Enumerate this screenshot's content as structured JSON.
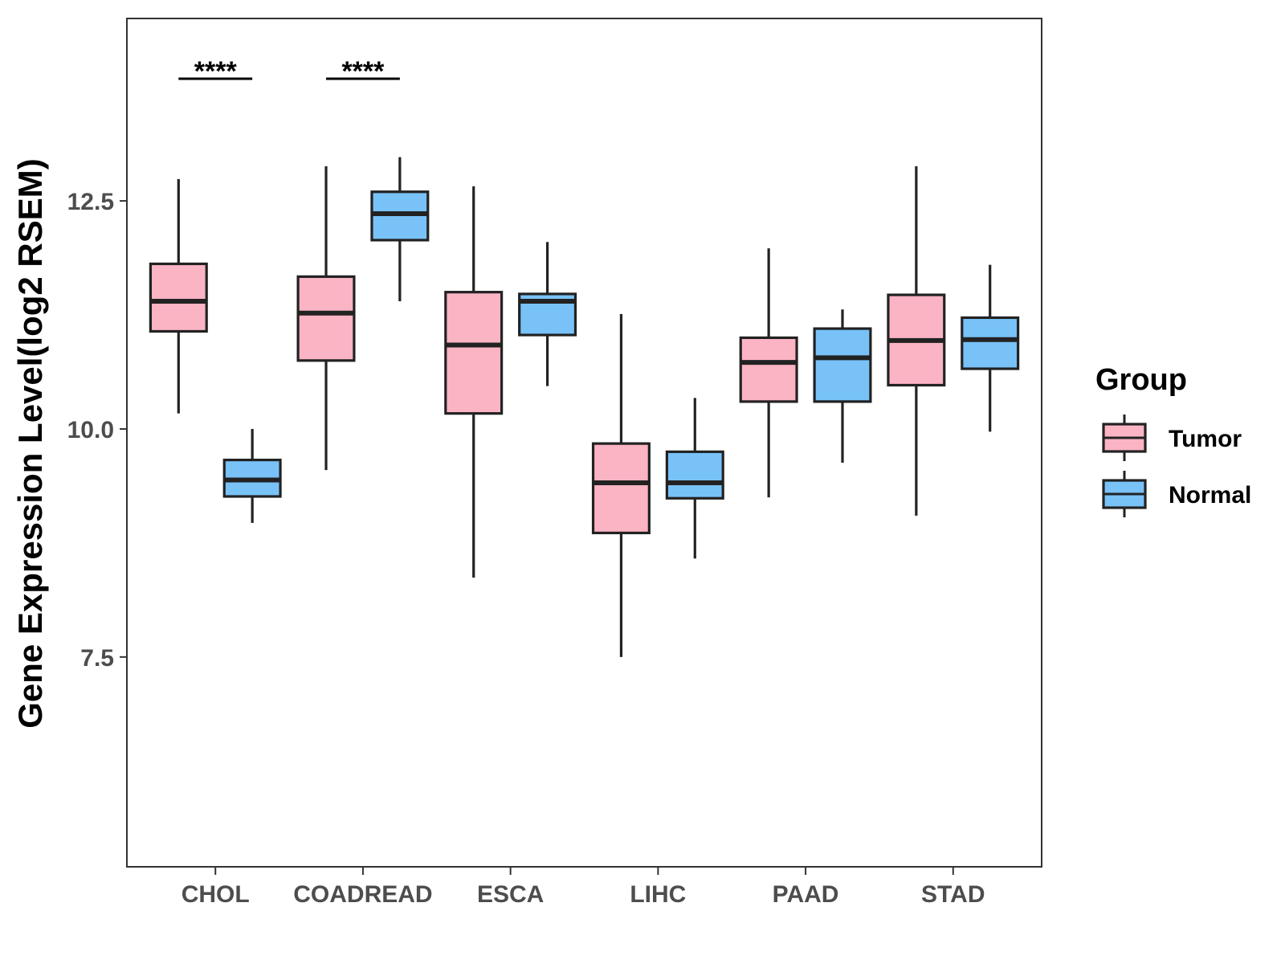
{
  "chart_data": {
    "type": "boxplot",
    "title": "",
    "xlabel": "",
    "ylabel": "Gene Expression Level(log2 RSEM)",
    "ylim": [
      5.2,
      14.5
    ],
    "yticks": [
      7.5,
      10.0,
      12.5
    ],
    "ytick_labels": [
      "7.5",
      "10.0",
      "12.5"
    ],
    "categories": [
      "CHOL",
      "COADREAD",
      "ESCA",
      "LIHC",
      "PAAD",
      "STAD"
    ],
    "legend": {
      "title": "Group",
      "position": "right",
      "items": [
        {
          "label": "Tumor",
          "color": "#FBB4C4"
        },
        {
          "label": "Normal",
          "color": "#78C2F8"
        }
      ]
    },
    "series": [
      {
        "name": "Tumor",
        "color": "#FBB4C4",
        "boxes": [
          {
            "min": 10.17,
            "q1": 11.07,
            "median": 11.4,
            "q3": 11.81,
            "max": 12.74
          },
          {
            "min": 9.55,
            "q1": 10.75,
            "median": 11.27,
            "q3": 11.67,
            "max": 12.88
          },
          {
            "min": 8.37,
            "q1": 10.17,
            "median": 10.92,
            "q3": 11.5,
            "max": 12.66
          },
          {
            "min": 7.5,
            "q1": 8.86,
            "median": 9.41,
            "q3": 9.84,
            "max": 11.26
          },
          {
            "min": 9.25,
            "q1": 10.3,
            "median": 10.73,
            "q3": 11.0,
            "max": 11.98
          },
          {
            "min": 9.05,
            "q1": 10.48,
            "median": 10.97,
            "q3": 11.47,
            "max": 12.88
          }
        ]
      },
      {
        "name": "Normal",
        "color": "#78C2F8",
        "boxes": [
          {
            "min": 8.97,
            "q1": 9.26,
            "median": 9.44,
            "q3": 9.66,
            "max": 10.0
          },
          {
            "min": 11.4,
            "q1": 12.07,
            "median": 12.36,
            "q3": 12.6,
            "max": 12.98
          },
          {
            "min": 10.47,
            "q1": 11.03,
            "median": 11.4,
            "q3": 11.48,
            "max": 12.05
          },
          {
            "min": 8.58,
            "q1": 9.24,
            "median": 9.41,
            "q3": 9.75,
            "max": 10.34
          },
          {
            "min": 9.63,
            "q1": 10.3,
            "median": 10.78,
            "q3": 11.1,
            "max": 11.31
          },
          {
            "min": 9.97,
            "q1": 10.66,
            "median": 10.98,
            "q3": 11.22,
            "max": 11.8
          }
        ]
      }
    ],
    "annotations": [
      {
        "category": "CHOL",
        "label": "****",
        "y": 13.84
      },
      {
        "category": "COADREAD",
        "label": "****",
        "y": 13.84
      }
    ]
  }
}
